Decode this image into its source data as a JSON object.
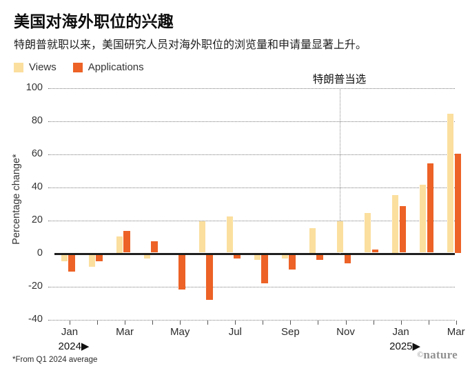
{
  "header": {
    "title": "美国对海外职位的兴趣",
    "subtitle": "特朗普就职以来，美国研究人员对海外职位的浏览量和申请量显著上升。"
  },
  "legend": [
    {
      "label": "Views",
      "color": "#FBDF9E"
    },
    {
      "label": "Applications",
      "color": "#ED6226"
    }
  ],
  "chart_data": {
    "type": "bar",
    "title": "美国对海外职位的兴趣",
    "ylabel": "Percentage change*",
    "ylim": [
      -40,
      100
    ],
    "yticks": [
      100,
      80,
      60,
      40,
      20,
      0,
      -20,
      -40
    ],
    "grid": "horizontal-dotted",
    "legend_position": "top-left",
    "categories": [
      "Jan 2024",
      "Feb 2024",
      "Mar 2024",
      "Apr 2024",
      "May 2024",
      "Jun 2024",
      "Jul 2024",
      "Aug 2024",
      "Sep 2024",
      "Oct 2024",
      "Nov 2024",
      "Dec 2024",
      "Jan 2025",
      "Feb 2025",
      "Mar 2025"
    ],
    "series": [
      {
        "name": "Views",
        "color": "#FBDF9E",
        "values": [
          -4,
          -7,
          10,
          -2,
          0,
          19,
          22,
          -3,
          -2,
          15,
          19,
          24,
          35,
          41,
          84
        ]
      },
      {
        "name": "Applications",
        "color": "#ED6226",
        "values": [
          -10,
          -4,
          13,
          7,
          -21,
          -27,
          -2,
          -17,
          -9,
          -3,
          -5,
          2,
          28,
          54,
          60
        ]
      }
    ],
    "x_axis_labels": [
      {
        "index": 0,
        "label": "Jan",
        "year": "2024▶"
      },
      {
        "index": 2,
        "label": "Mar"
      },
      {
        "index": 4,
        "label": "May"
      },
      {
        "index": 6,
        "label": "Jul"
      },
      {
        "index": 8,
        "label": "Sep"
      },
      {
        "index": 10,
        "label": "Nov"
      },
      {
        "index": 12,
        "label": "Jan",
        "year": "2025▶"
      },
      {
        "index": 14,
        "label": "Mar"
      }
    ],
    "annotation": {
      "label": "特朗普当选",
      "month_index": 10
    }
  },
  "footer": {
    "note": "*From Q1 2024 average",
    "credit_symbol": "©",
    "credit_name": "nature"
  }
}
